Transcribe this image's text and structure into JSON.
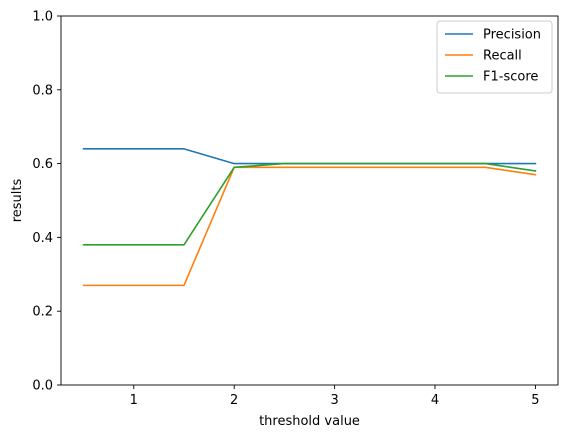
{
  "chart_data": {
    "type": "line",
    "title": "",
    "xlabel": "threshold value",
    "ylabel": "results",
    "xlim": [
      0.275,
      5.225
    ],
    "ylim": [
      0,
      1
    ],
    "xticks": [
      1,
      2,
      3,
      4,
      5
    ],
    "xtick_labels": [
      "1",
      "2",
      "3",
      "4",
      "5"
    ],
    "yticks": [
      0,
      0.2,
      0.4,
      0.6,
      0.8,
      1.0
    ],
    "ytick_labels": [
      "0.0",
      "0.2",
      "0.4",
      "0.6",
      "0.8",
      "1.0"
    ],
    "grid": false,
    "legend_position": "top-right",
    "x": [
      0.5,
      1.0,
      1.5,
      2.0,
      2.5,
      3.0,
      3.5,
      4.0,
      4.5,
      5.0
    ],
    "series": [
      {
        "name": "Precision",
        "color": "#1f77b4",
        "values": [
          0.64,
          0.64,
          0.64,
          0.6,
          0.6,
          0.6,
          0.6,
          0.6,
          0.6,
          0.6
        ]
      },
      {
        "name": "Recall",
        "color": "#ff7f0e",
        "values": [
          0.27,
          0.27,
          0.27,
          0.59,
          0.59,
          0.59,
          0.59,
          0.59,
          0.59,
          0.57
        ]
      },
      {
        "name": "F1-score",
        "color": "#2ca02c",
        "values": [
          0.38,
          0.38,
          0.38,
          0.59,
          0.6,
          0.6,
          0.6,
          0.6,
          0.6,
          0.58
        ]
      }
    ]
  }
}
